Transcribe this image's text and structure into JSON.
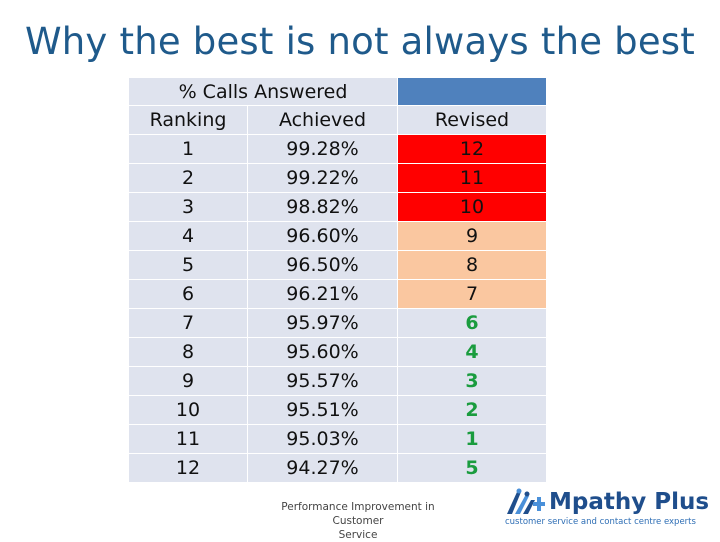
{
  "title": "Why the best is not always the best",
  "table": {
    "header_group": "% Calls Answered",
    "col_ranking": "Ranking",
    "col_achieved": "Achieved",
    "col_revised": "Revised",
    "rows": [
      {
        "ranking": "1",
        "achieved": "99.28%",
        "revised": "12",
        "highlight": "red"
      },
      {
        "ranking": "2",
        "achieved": "99.22%",
        "revised": "11",
        "highlight": "red"
      },
      {
        "ranking": "3",
        "achieved": "98.82%",
        "revised": "10",
        "highlight": "red"
      },
      {
        "ranking": "4",
        "achieved": "96.60%",
        "revised": "9",
        "highlight": "peach"
      },
      {
        "ranking": "5",
        "achieved": "96.50%",
        "revised": "8",
        "highlight": "peach"
      },
      {
        "ranking": "6",
        "achieved": "96.21%",
        "revised": "7",
        "highlight": "peach"
      },
      {
        "ranking": "7",
        "achieved": "95.97%",
        "revised": "6",
        "highlight": "green-text"
      },
      {
        "ranking": "8",
        "achieved": "95.60%",
        "revised": "4",
        "highlight": "green-text"
      },
      {
        "ranking": "9",
        "achieved": "95.57%",
        "revised": "3",
        "highlight": "green-text"
      },
      {
        "ranking": "10",
        "achieved": "95.51%",
        "revised": "2",
        "highlight": "green-text"
      },
      {
        "ranking": "11",
        "achieved": "95.03%",
        "revised": "1",
        "highlight": "green-text"
      },
      {
        "ranking": "12",
        "achieved": "94.27%",
        "revised": "5",
        "highlight": "green-text"
      }
    ]
  },
  "footer": {
    "line1": "Performance Improvement in Customer",
    "line2": "Service"
  },
  "logo": {
    "name": "Mpathy Plus",
    "tagline": "customer service and contact centre experts"
  },
  "colors": {
    "title": "#1f5a8b",
    "header_blue": "#4f81bd",
    "cell_bg": "#dfe3ee",
    "red": "#ff0000",
    "peach": "#fac7a0",
    "green_text": "#1a9c3e"
  }
}
